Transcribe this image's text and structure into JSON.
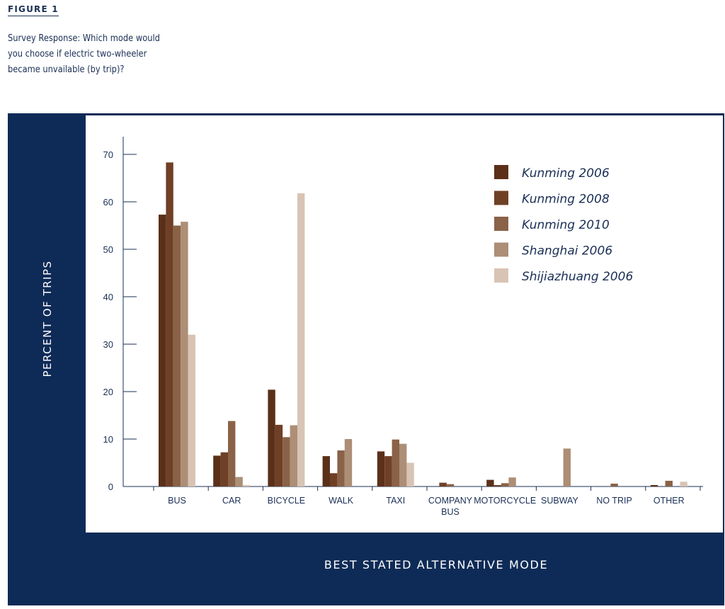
{
  "figure_label": "FIGURE 1",
  "caption": "Survey Response: Which mode would you choose if electric two-wheeler became unvailable (by trip)?",
  "chart_data": {
    "type": "bar",
    "categories": [
      [
        "BUS"
      ],
      [
        "CAR"
      ],
      [
        "BICYCLE"
      ],
      [
        "WALK"
      ],
      [
        "TAXI"
      ],
      [
        "COMPANY",
        "BUS"
      ],
      [
        "MOTORCYCLE"
      ],
      [
        "SUBWAY"
      ],
      [
        "NO TRIP"
      ],
      [
        "OTHER"
      ]
    ],
    "series": [
      {
        "name": "Kunming 2006",
        "color": "#5b3019",
        "values": [
          57.3,
          6.5,
          20.4,
          6.4,
          7.4,
          0,
          1.4,
          0,
          0,
          0.3
        ]
      },
      {
        "name": "Kunming 2008",
        "color": "#6f4026",
        "values": [
          68.3,
          7.2,
          13.0,
          2.8,
          6.4,
          0.8,
          0.3,
          0,
          0,
          0
        ]
      },
      {
        "name": "Kunming 2010",
        "color": "#8a6248",
        "values": [
          55.0,
          13.8,
          10.4,
          7.6,
          9.9,
          0.5,
          0.7,
          0,
          0.6,
          1.2
        ]
      },
      {
        "name": "Shanghai 2006",
        "color": "#ad8e76",
        "values": [
          55.8,
          2.0,
          12.9,
          10.0,
          9.0,
          0,
          1.9,
          8.0,
          0,
          0
        ]
      },
      {
        "name": "Shijiazhuang 2006",
        "color": "#d8c4b4",
        "values": [
          32.0,
          0.3,
          61.8,
          0,
          5.0,
          0,
          0,
          0,
          0,
          1.0
        ]
      }
    ],
    "yticks": [
      0,
      10,
      20,
      30,
      40,
      50,
      60,
      70
    ],
    "ylim": [
      0,
      74
    ],
    "xlabel": "BEST STATED ALTERNATIVE MODE",
    "ylabel": "PERCENT OF TRIPS",
    "legend_position": "top-right",
    "grid": false
  }
}
